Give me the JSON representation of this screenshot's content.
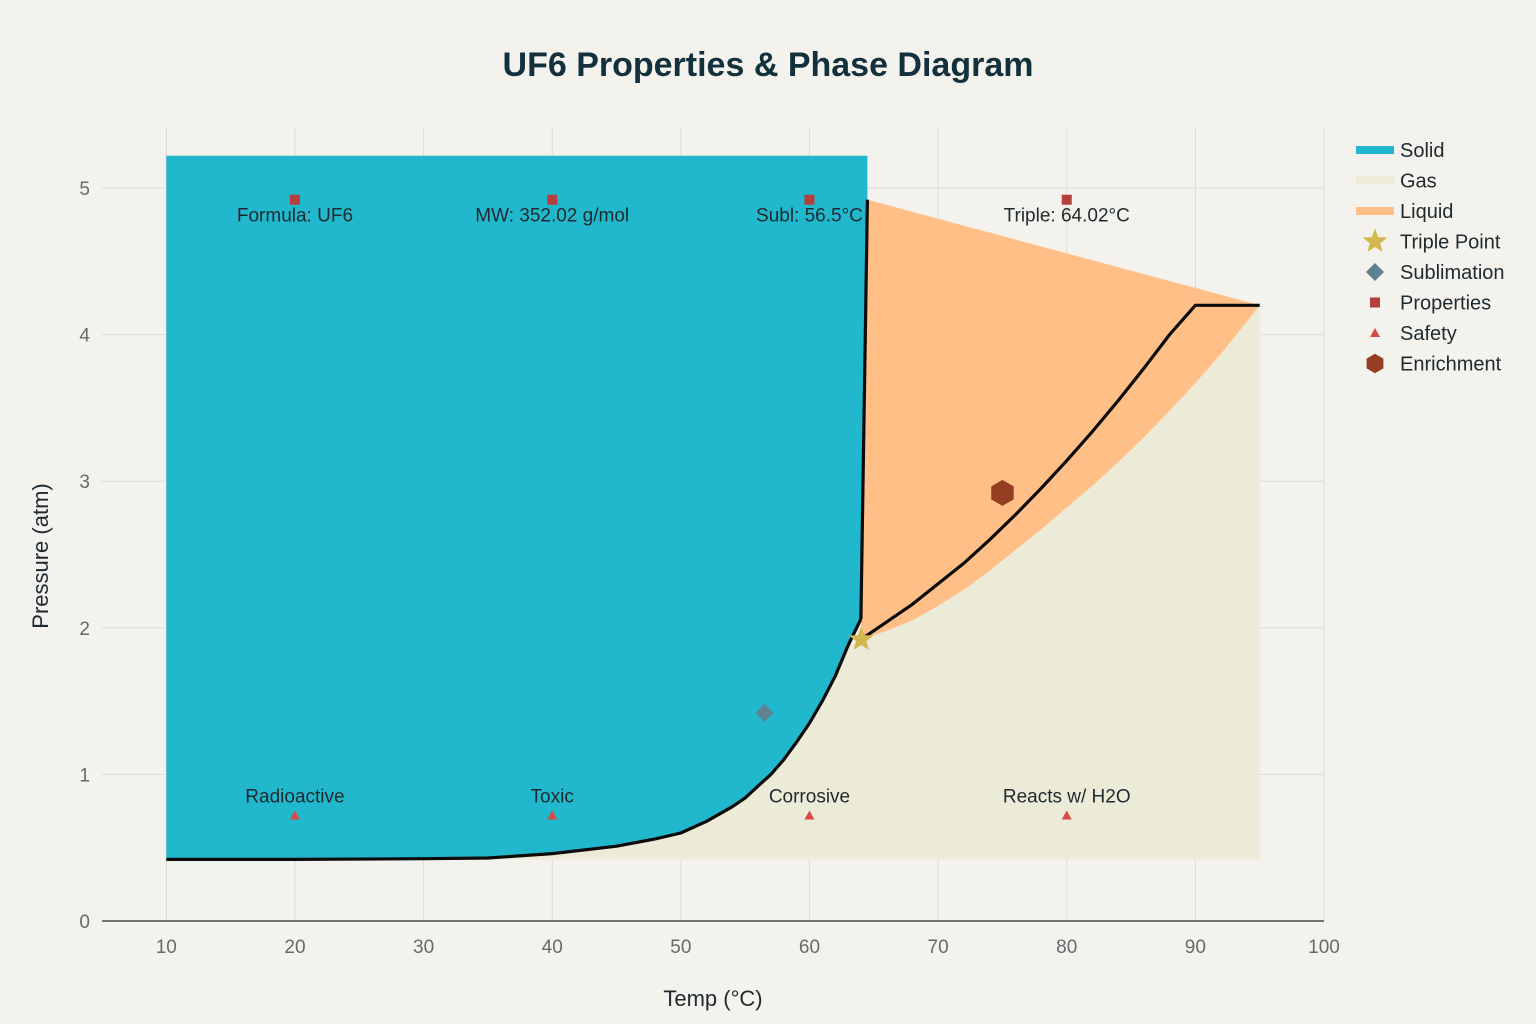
{
  "chart_data": {
    "type": "area",
    "title": "UF6 Properties & Phase Diagram",
    "xlabel": "Temp (°C)",
    "ylabel": "Pressure (atm)",
    "xlim": [
      5,
      100
    ],
    "ylim": [
      0,
      5.3
    ],
    "x_ticks": [
      10,
      20,
      30,
      40,
      50,
      60,
      70,
      80,
      90,
      100
    ],
    "y_ticks": [
      0,
      1,
      2,
      3,
      4,
      5
    ],
    "grid": true,
    "legend_position": "top-right",
    "series": [
      {
        "name": "Solid",
        "kind": "area",
        "color": "#21b8cd",
        "points": [
          [
            10,
            0.42
          ],
          [
            20,
            0.42
          ],
          [
            30,
            0.425
          ],
          [
            35,
            0.43
          ],
          [
            40,
            0.46
          ],
          [
            45,
            0.51
          ],
          [
            48,
            0.56
          ],
          [
            50,
            0.6
          ],
          [
            52,
            0.68
          ],
          [
            54,
            0.78
          ],
          [
            55,
            0.84
          ],
          [
            56,
            0.92
          ],
          [
            57,
            1.0
          ],
          [
            58,
            1.1
          ],
          [
            59,
            1.22
          ],
          [
            60,
            1.35
          ],
          [
            61,
            1.5
          ],
          [
            62,
            1.67
          ],
          [
            63,
            1.88
          ],
          [
            64,
            2.06
          ],
          [
            64.5,
            4.92
          ],
          [
            64.5,
            5.22
          ],
          [
            10,
            5.22
          ]
        ]
      },
      {
        "name": "Gas",
        "kind": "area",
        "color": "#ecebd8",
        "points": [
          [
            10,
            0.42
          ],
          [
            20,
            0.42
          ],
          [
            30,
            0.425
          ],
          [
            35,
            0.43
          ],
          [
            40,
            0.46
          ],
          [
            45,
            0.51
          ],
          [
            48,
            0.56
          ],
          [
            50,
            0.6
          ],
          [
            52,
            0.68
          ],
          [
            54,
            0.78
          ],
          [
            55,
            0.84
          ],
          [
            56,
            0.92
          ],
          [
            57,
            1.0
          ],
          [
            58,
            1.1
          ],
          [
            59,
            1.22
          ],
          [
            60,
            1.35
          ],
          [
            61,
            1.5
          ],
          [
            62,
            1.67
          ],
          [
            63,
            1.88
          ],
          [
            64,
            1.92
          ],
          [
            66,
            2.04
          ],
          [
            68,
            2.16
          ],
          [
            70,
            2.3
          ],
          [
            72,
            2.44
          ],
          [
            74,
            2.6
          ],
          [
            76,
            2.77
          ],
          [
            78,
            2.95
          ],
          [
            80,
            3.14
          ],
          [
            82,
            3.34
          ],
          [
            84,
            3.55
          ],
          [
            86,
            3.77
          ],
          [
            88,
            4.0
          ],
          [
            90,
            4.2
          ],
          [
            95,
            4.2
          ],
          [
            95,
            0.42
          ]
        ]
      },
      {
        "name": "Liquid",
        "kind": "area",
        "color": "#ffbf86",
        "points": [
          [
            64.5,
            4.92
          ],
          [
            95,
            4.2
          ],
          [
            92,
            3.87
          ],
          [
            90,
            3.67
          ],
          [
            88,
            3.48
          ],
          [
            86,
            3.3
          ],
          [
            84,
            3.13
          ],
          [
            82,
            2.97
          ],
          [
            80,
            2.82
          ],
          [
            78,
            2.67
          ],
          [
            76,
            2.53
          ],
          [
            74,
            2.39
          ],
          [
            72,
            2.26
          ],
          [
            70,
            2.15
          ],
          [
            68,
            2.05
          ],
          [
            66,
            1.98
          ],
          [
            64,
            1.92
          ],
          [
            64,
            2.06
          ]
        ]
      },
      {
        "name": "Triple Point",
        "kind": "marker",
        "marker": "star",
        "color": "#d4b84f",
        "points": [
          [
            64.02,
            1.92
          ]
        ]
      },
      {
        "name": "Sublimation",
        "kind": "marker",
        "marker": "diamond",
        "color": "#5d8290",
        "points": [
          [
            56.5,
            1.42
          ]
        ]
      },
      {
        "name": "Properties",
        "kind": "marker",
        "marker": "square",
        "color": "#b53f3c",
        "points": [
          [
            20,
            4.92
          ],
          [
            40,
            4.92
          ],
          [
            60,
            4.92
          ],
          [
            80,
            4.92
          ]
        ],
        "labels": [
          "Formula: UF6",
          "MW: 352.02 g/mol",
          "Subl: 56.5°C",
          "Triple: 64.02°C"
        ]
      },
      {
        "name": "Safety",
        "kind": "marker",
        "marker": "triangle",
        "color": "#d94a46",
        "points": [
          [
            20,
            0.72
          ],
          [
            40,
            0.72
          ],
          [
            60,
            0.72
          ],
          [
            80,
            0.72
          ]
        ],
        "labels": [
          "Radioactive",
          "Toxic",
          "Corrosive",
          "Reacts w/ H2O"
        ]
      },
      {
        "name": "Enrichment",
        "kind": "marker",
        "marker": "hexagon",
        "color": "#963e22",
        "points": [
          [
            75,
            2.92
          ]
        ]
      }
    ],
    "boundary_lines": [
      {
        "color": "#0b0b0b",
        "points": [
          [
            10,
            0.42
          ],
          [
            20,
            0.42
          ],
          [
            30,
            0.425
          ],
          [
            35,
            0.43
          ],
          [
            40,
            0.46
          ],
          [
            45,
            0.51
          ],
          [
            48,
            0.56
          ],
          [
            50,
            0.6
          ],
          [
            52,
            0.68
          ],
          [
            54,
            0.78
          ],
          [
            55,
            0.84
          ],
          [
            56,
            0.92
          ],
          [
            57,
            1.0
          ],
          [
            58,
            1.1
          ],
          [
            59,
            1.22
          ],
          [
            60,
            1.35
          ],
          [
            61,
            1.5
          ],
          [
            62,
            1.67
          ],
          [
            63,
            1.88
          ],
          [
            64,
            2.06
          ]
        ]
      },
      {
        "color": "#0b0b0b",
        "points": [
          [
            64,
            2.06
          ],
          [
            64.5,
            4.92
          ]
        ]
      },
      {
        "color": "#0b0b0b",
        "points": [
          [
            64,
            1.92
          ],
          [
            66,
            2.04
          ],
          [
            68,
            2.16
          ],
          [
            70,
            2.3
          ],
          [
            72,
            2.44
          ],
          [
            74,
            2.6
          ],
          [
            76,
            2.77
          ],
          [
            78,
            2.95
          ],
          [
            80,
            3.14
          ],
          [
            82,
            3.34
          ],
          [
            84,
            3.55
          ],
          [
            86,
            3.77
          ],
          [
            88,
            4.0
          ],
          [
            90,
            4.2
          ],
          [
            95,
            4.2
          ]
        ]
      }
    ],
    "legend": [
      "Solid",
      "Gas",
      "Liquid",
      "Triple Point",
      "Sublimation",
      "Properties",
      "Safety",
      "Enrichment"
    ]
  }
}
